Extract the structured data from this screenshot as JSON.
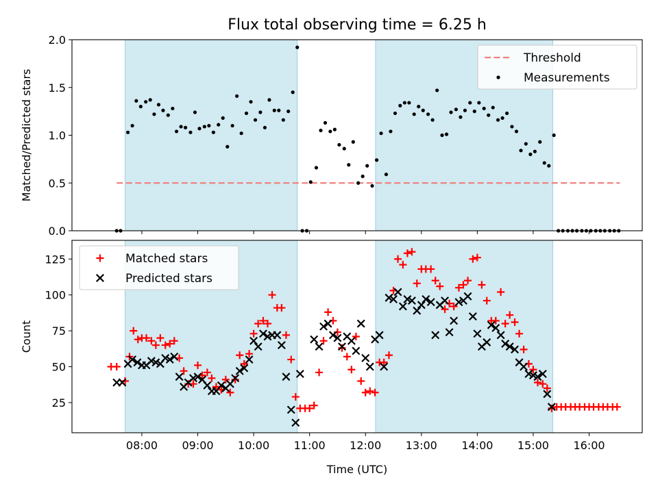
{
  "chart_data": {
    "title": "Flux total observing time = 6.25 h",
    "xlabel": "Time (UTC)",
    "xlim_hours": [
      6.75,
      16.95
    ],
    "xticks": [
      {
        "value": 8,
        "label": "08:00"
      },
      {
        "value": 9,
        "label": "09:00"
      },
      {
        "value": 10,
        "label": "10:00"
      },
      {
        "value": 11,
        "label": "11:00"
      },
      {
        "value": 12,
        "label": "12:00"
      },
      {
        "value": 13,
        "label": "13:00"
      },
      {
        "value": 14,
        "label": "14:00"
      },
      {
        "value": 15,
        "label": "15:00"
      },
      {
        "value": 16,
        "label": "16:00"
      }
    ],
    "shaded_intervals_hours": [
      [
        7.7,
        10.78
      ],
      [
        12.18,
        15.35
      ]
    ],
    "shade_color": "#add8e6",
    "panels": [
      {
        "type": "scatter",
        "ylabel": "Matched/Predicted stars",
        "ylim": [
          0,
          2.0
        ],
        "yticks": [
          {
            "value": 0.0,
            "label": "0.0"
          },
          {
            "value": 0.5,
            "label": "0.5"
          },
          {
            "value": 1.0,
            "label": "1.0"
          },
          {
            "value": 1.5,
            "label": "1.5"
          },
          {
            "value": 2.0,
            "label": "2.0"
          }
        ],
        "threshold": {
          "name": "Threshold",
          "value": 0.5,
          "x_range": [
            7.55,
            16.55
          ],
          "color": "#f08080"
        },
        "legend": {
          "position": "top-right",
          "entries": [
            "Threshold",
            "Measurements"
          ]
        },
        "series": [
          {
            "name": "Measurements",
            "marker": "dot",
            "color": "#000000",
            "x": [
              7.55,
              7.62,
              7.75,
              7.83,
              7.9,
              7.98,
              8.07,
              8.15,
              8.22,
              8.3,
              8.38,
              8.47,
              8.55,
              8.62,
              8.7,
              8.78,
              8.87,
              8.95,
              9.03,
              9.12,
              9.2,
              9.28,
              9.37,
              9.45,
              9.53,
              9.62,
              9.7,
              9.78,
              9.87,
              9.95,
              10.03,
              10.12,
              10.2,
              10.28,
              10.37,
              10.45,
              10.53,
              10.62,
              10.7,
              10.78,
              10.87,
              10.95,
              11.02,
              11.12,
              11.2,
              11.28,
              11.37,
              11.45,
              11.53,
              11.62,
              11.7,
              11.78,
              11.87,
              11.95,
              12.03,
              12.12,
              12.2,
              12.28,
              12.37,
              12.45,
              12.53,
              12.62,
              12.7,
              12.78,
              12.87,
              12.95,
              13.03,
              13.12,
              13.2,
              13.28,
              13.37,
              13.45,
              13.53,
              13.62,
              13.7,
              13.78,
              13.87,
              13.95,
              14.03,
              14.12,
              14.2,
              14.28,
              14.37,
              14.45,
              14.53,
              14.62,
              14.7,
              14.78,
              14.87,
              14.95,
              15.03,
              15.12,
              15.2,
              15.28,
              15.37,
              15.45,
              15.53,
              15.62,
              15.7,
              15.78,
              15.87,
              15.95,
              16.03,
              16.12,
              16.2,
              16.28,
              16.37,
              16.45,
              16.53
            ],
            "y": [
              0.0,
              0.0,
              1.03,
              1.1,
              1.36,
              1.3,
              1.35,
              1.37,
              1.22,
              1.32,
              1.26,
              1.21,
              1.28,
              1.04,
              1.09,
              1.08,
              1.03,
              1.24,
              1.07,
              1.09,
              1.1,
              1.03,
              1.11,
              1.18,
              0.88,
              1.1,
              1.41,
              1.02,
              1.23,
              1.35,
              1.16,
              1.24,
              1.08,
              1.37,
              1.26,
              1.26,
              1.16,
              1.25,
              1.45,
              1.92,
              0.0,
              0.0,
              0.51,
              0.66,
              1.05,
              1.13,
              1.04,
              1.06,
              0.9,
              0.86,
              0.69,
              0.93,
              0.5,
              0.57,
              0.68,
              0.47,
              0.74,
              1.02,
              0.59,
              1.04,
              1.23,
              1.31,
              1.34,
              1.34,
              1.22,
              1.3,
              1.26,
              1.22,
              1.16,
              1.47,
              1.0,
              1.01,
              1.24,
              1.27,
              1.19,
              1.26,
              1.34,
              1.25,
              1.34,
              1.28,
              1.21,
              1.29,
              1.16,
              1.18,
              1.23,
              1.09,
              1.04,
              0.84,
              0.91,
              0.8,
              0.83,
              0.93,
              0.71,
              0.68,
              1.0,
              0.0,
              0.0,
              0.0,
              0.0,
              0.0,
              0.0,
              0.0,
              0.0,
              0.0,
              0.0,
              0.0,
              0.0,
              0.0,
              0.0
            ]
          }
        ]
      },
      {
        "type": "scatter",
        "ylabel": "Count",
        "ylim": [
          4,
          138
        ],
        "yticks": [
          {
            "value": 25,
            "label": "25"
          },
          {
            "value": 50,
            "label": "50"
          },
          {
            "value": 75,
            "label": "75"
          },
          {
            "value": 100,
            "label": "100"
          },
          {
            "value": 125,
            "label": "125"
          }
        ],
        "legend": {
          "position": "top-left",
          "entries": [
            "Matched stars",
            "Predicted stars"
          ]
        },
        "series": [
          {
            "name": "Matched stars",
            "marker": "plus",
            "color": "#ff0000",
            "x": [
              7.45,
              7.55,
              7.7,
              7.78,
              7.85,
              7.93,
              8.0,
              8.08,
              8.17,
              8.25,
              8.33,
              8.42,
              8.5,
              8.58,
              8.67,
              8.75,
              8.83,
              8.92,
              9.0,
              9.08,
              9.17,
              9.25,
              9.33,
              9.42,
              9.5,
              9.58,
              9.67,
              9.75,
              9.83,
              9.92,
              10.0,
              10.08,
              10.17,
              10.25,
              10.33,
              10.42,
              10.5,
              10.58,
              10.67,
              10.75,
              10.83,
              10.92,
              11.0,
              11.08,
              11.17,
              11.25,
              11.33,
              11.42,
              11.5,
              11.58,
              11.67,
              11.75,
              11.83,
              11.92,
              12.0,
              12.08,
              12.17,
              12.25,
              12.33,
              12.42,
              12.5,
              12.58,
              12.67,
              12.75,
              12.83,
              12.92,
              13.0,
              13.08,
              13.17,
              13.25,
              13.33,
              13.42,
              13.5,
              13.58,
              13.67,
              13.75,
              13.83,
              13.92,
              14.0,
              14.08,
              14.17,
              14.25,
              14.33,
              14.42,
              14.5,
              14.58,
              14.67,
              14.75,
              14.83,
              14.92,
              15.0,
              15.08,
              15.17,
              15.25,
              15.33,
              15.42,
              15.5,
              15.58,
              15.67,
              15.75,
              15.83,
              15.92,
              16.0,
              16.08,
              16.17,
              16.25,
              16.33,
              16.42,
              16.5
            ],
            "y": [
              50,
              50,
              40,
              57,
              75,
              69,
              70,
              70,
              68,
              65,
              70,
              65,
              66,
              68,
              56,
              47,
              38,
              38,
              51,
              44,
              46,
              42,
              36,
              34,
              41,
              32,
              41,
              58,
              52,
              59,
              73,
              80,
              82,
              80,
              100,
              91,
              91,
              72,
              55,
              29,
              21,
              21,
              21,
              23,
              46,
              68,
              88,
              82,
              74,
              63,
              57,
              48,
              71,
              40,
              32,
              33,
              32,
              53,
              53,
              58,
              103,
              125,
              121,
              129,
              130,
              108,
              118,
              118,
              118,
              110,
              106,
              90,
              94,
              92,
              105,
              107,
              110,
              125,
              126,
              107,
              96,
              82,
              82,
              102,
              80,
              86,
              81,
              73,
              62,
              52,
              48,
              39,
              38,
              35,
              21,
              22,
              22,
              22,
              22,
              22,
              22,
              22,
              22,
              22,
              22,
              22,
              22,
              22,
              22
            ]
          },
          {
            "name": "Predicted stars",
            "marker": "x",
            "color": "#000000",
            "x": [
              7.55,
              7.65,
              7.75,
              7.83,
              7.92,
              8.0,
              8.08,
              8.17,
              8.25,
              8.33,
              8.42,
              8.5,
              8.58,
              8.67,
              8.75,
              8.83,
              8.92,
              9.0,
              9.08,
              9.17,
              9.25,
              9.33,
              9.42,
              9.5,
              9.58,
              9.67,
              9.75,
              9.83,
              9.92,
              10.0,
              10.08,
              10.17,
              10.25,
              10.33,
              10.42,
              10.5,
              10.58,
              10.67,
              10.75,
              10.83,
              11.08,
              11.17,
              11.25,
              11.33,
              11.42,
              11.5,
              11.58,
              11.67,
              11.75,
              11.83,
              11.92,
              12.0,
              12.08,
              12.17,
              12.25,
              12.33,
              12.42,
              12.5,
              12.58,
              12.67,
              12.75,
              12.83,
              12.92,
              13.0,
              13.08,
              13.17,
              13.25,
              13.33,
              13.42,
              13.5,
              13.58,
              13.67,
              13.75,
              13.83,
              13.92,
              14.0,
              14.08,
              14.17,
              14.25,
              14.33,
              14.42,
              14.5,
              14.58,
              14.67,
              14.75,
              14.83,
              14.92,
              15.0,
              15.08,
              15.17,
              15.25,
              15.33
            ],
            "y": [
              39,
              39,
              52,
              55,
              53,
              51,
              51,
              54,
              53,
              52,
              56,
              55,
              57,
              43,
              36,
              39,
              42,
              43,
              41,
              37,
              33,
              33,
              37,
              35,
              38,
              42,
              47,
              49,
              55,
              68,
              64,
              73,
              71,
              72,
              72,
              65,
              43,
              20,
              11,
              45,
              69,
              64,
              78,
              80,
              72,
              70,
              64,
              71,
              68,
              61,
              80,
              56,
              50,
              69,
              72,
              50,
              98,
              97,
              102,
              92,
              97,
              96,
              89,
              93,
              97,
              95,
              72,
              93,
              96,
              74,
              82,
              95,
              96,
              99,
              85,
              73,
              64,
              67,
              79,
              77,
              72,
              66,
              64,
              62,
              53,
              50,
              45,
              44,
              43,
              45,
              31,
              22
            ]
          }
        ]
      }
    ]
  }
}
